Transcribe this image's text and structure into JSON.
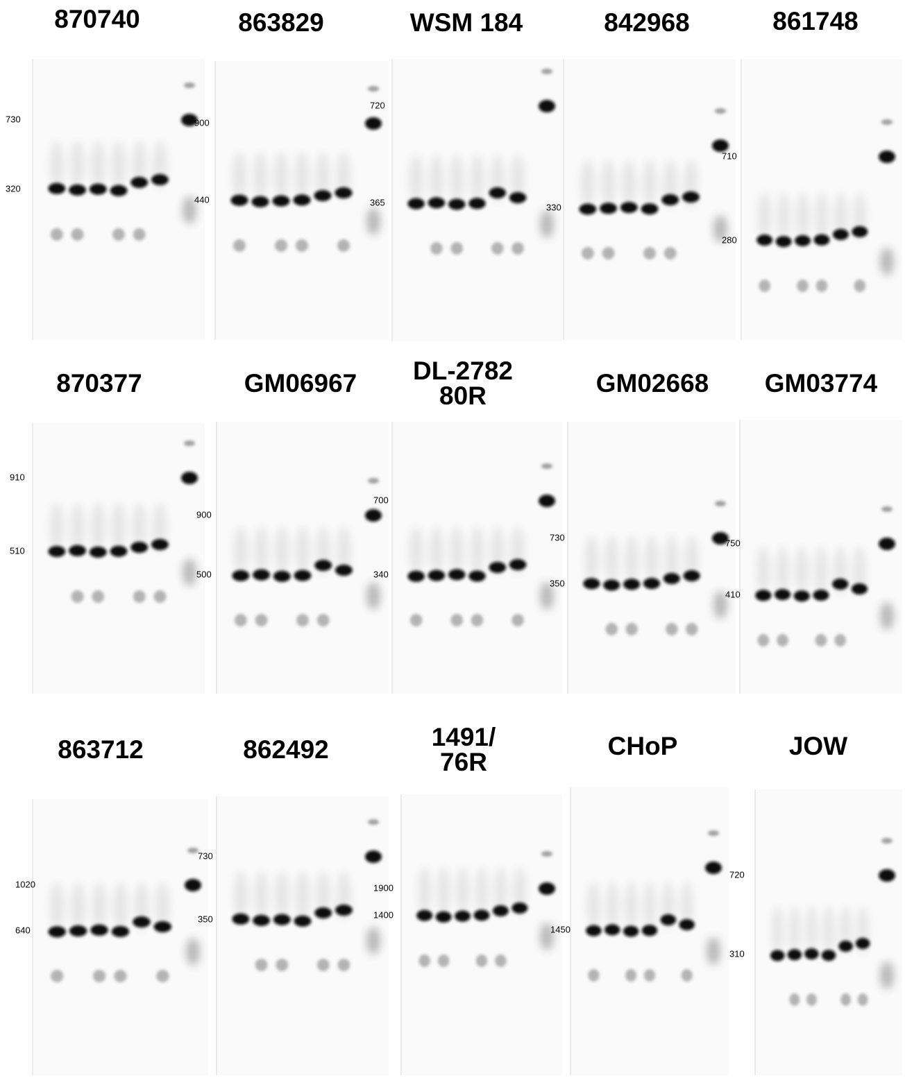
{
  "panels": [
    {
      "title": [
        "870740"
      ],
      "labels": [
        "730",
        "320"
      ]
    },
    {
      "title": [
        "863829"
      ],
      "labels": [
        "900",
        "440"
      ]
    },
    {
      "title": [
        "WSM 184"
      ],
      "labels": [
        "720",
        "365"
      ]
    },
    {
      "title": [
        "842968"
      ],
      "labels": [
        "330"
      ]
    },
    {
      "title": [
        "861748"
      ],
      "labels": [
        "710",
        "280"
      ]
    },
    {
      "title": [
        "870377"
      ],
      "labels": [
        "910",
        "510"
      ]
    },
    {
      "title": [
        "GM06967"
      ],
      "labels": [
        "900",
        "500"
      ]
    },
    {
      "title": [
        "DL-2782",
        "80R"
      ],
      "labels": [
        "700",
        "340"
      ]
    },
    {
      "title": [
        "GM02668"
      ],
      "labels": [
        "730",
        "350"
      ]
    },
    {
      "title": [
        "GM03774"
      ],
      "labels": [
        "750",
        "410"
      ]
    },
    {
      "title": [
        "863712"
      ],
      "labels": [
        "1020",
        "640"
      ]
    },
    {
      "title": [
        "862492"
      ],
      "labels": [
        "730",
        "350"
      ]
    },
    {
      "title": [
        "1491/",
        "76R"
      ],
      "labels": [
        "1900",
        "1400"
      ]
    },
    {
      "title": [
        "CHoP"
      ],
      "labels": [
        "1450"
      ]
    },
    {
      "title": [
        "JOW"
      ],
      "labels": [
        "720",
        "310"
      ]
    }
  ]
}
